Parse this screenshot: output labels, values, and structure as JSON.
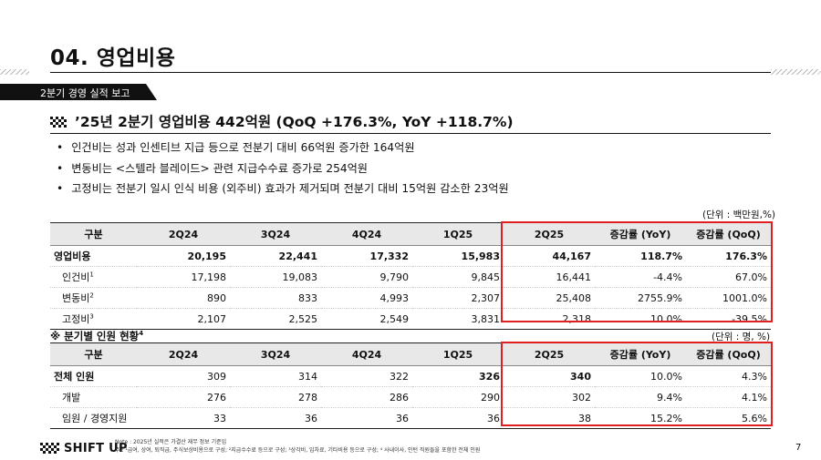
{
  "page": {
    "title": "04. 영업비용",
    "section_banner": "2분기 경영 실적 보고",
    "heading": "’25년 2분기 영업비용 442억원 (QoQ +176.3%, YoY +118.7%)",
    "bullets": [
      "인건비는 성과 인센티브 지급 등으로 전분기 대비 66억원 증가한 164억원",
      "변동비는 <스텔라 블레이드> 관련 지급수수료 증가로 254억원",
      "고정비는 전분기 일시 인식 비용 (외주비) 효과가 제거되며 전분기 대비 15억원 감소한 23억원"
    ],
    "page_number": "7",
    "logo_text": "SHIFT UP"
  },
  "table1": {
    "unit": "(단위 : 백만원,%)",
    "headers": [
      "구분",
      "2Q24",
      "3Q24",
      "4Q24",
      "1Q25",
      "2Q25",
      "증감률 (YoY)",
      "증감률 (QoQ)"
    ],
    "rows": [
      {
        "label": "영업비용",
        "values": [
          "20,195",
          "22,441",
          "17,332",
          "15,983",
          "44,167",
          "118.7%",
          "176.3%"
        ]
      },
      {
        "label": "인건비",
        "sup": "1",
        "values": [
          "17,198",
          "19,083",
          "9,790",
          "9,845",
          "16,441",
          "-4.4%",
          "67.0%"
        ]
      },
      {
        "label": "변동비",
        "sup": "2",
        "values": [
          "890",
          "833",
          "4,993",
          "2,307",
          "25,408",
          "2755.9%",
          "1001.0%"
        ]
      },
      {
        "label": "고정비",
        "sup": "3",
        "values": [
          "2,107",
          "2,525",
          "2,549",
          "3,831",
          "2,318",
          "10.0%",
          "-39.5%"
        ]
      }
    ]
  },
  "table2": {
    "title": "※ 분기별 인원 현황",
    "title_sup": "4",
    "unit": "(단위 : 명, %)",
    "headers": [
      "구분",
      "2Q24",
      "3Q24",
      "4Q24",
      "1Q25",
      "2Q25",
      "증감률 (YoY)",
      "증감률 (QoQ)"
    ],
    "rows": [
      {
        "label": "전체 인원",
        "values": [
          "309",
          "314",
          "322",
          "326",
          "340",
          "10.0%",
          "4.3%"
        ]
      },
      {
        "label": "개발",
        "values": [
          "276",
          "278",
          "286",
          "290",
          "302",
          "9.4%",
          "4.1%"
        ]
      },
      {
        "label": "임원 / 경영지원",
        "values": [
          "33",
          "36",
          "36",
          "36",
          "38",
          "15.2%",
          "5.6%"
        ]
      }
    ]
  },
  "notes": {
    "line1": "Note : 2025년 실적은 가결산 재무 정보 기준임",
    "line2": "주 : ¹급여, 상여, 퇴직급, 주식보상비용으로 구성; ²지급수수료 등으로 구성; ³상각비, 임차료, 기타비용 등으로 구성; ⁴ 사내이사, 인턴 직원들을 포함한 전체 인원"
  },
  "colors": {
    "highlight_box": "#e02020",
    "header_fill": "#e8e8e8"
  }
}
